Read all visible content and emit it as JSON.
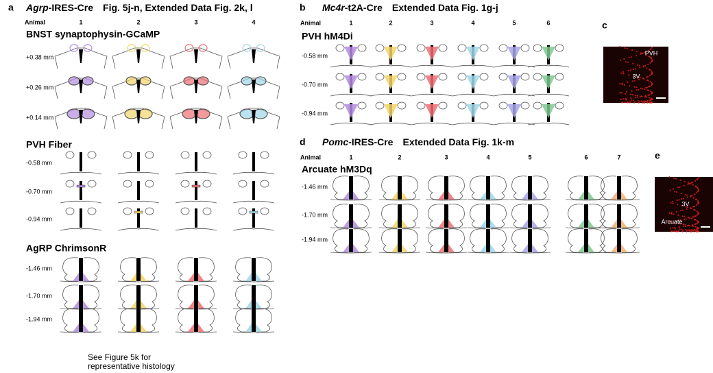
{
  "panels": [
    {
      "label": "a",
      "gene": "Agrp",
      "driver": "-IRES-Cre",
      "reference": "Fig. 5j-n, Extended Data Fig. 2k, l",
      "animal_header": "Animal",
      "animals": [
        "1",
        "2",
        "3",
        "4"
      ],
      "sections": [
        {
          "title": "BNST synaptophysin-GCaMP",
          "levels": [
            "+0.38 mm",
            "+0.26 mm",
            "+0.14 mm"
          ]
        },
        {
          "title": "PVH Fiber",
          "levels": [
            "-0.58 mm",
            "-0.70 mm",
            "-0.94 mm"
          ]
        },
        {
          "title": "AgRP ChrimsonR",
          "levels": [
            "-1.46 mm",
            "-1.70 mm",
            "-1.94 mm"
          ]
        }
      ],
      "note": [
        "See Figure 5k for",
        "representative histology"
      ]
    },
    {
      "label": "b",
      "gene": "Mc4r",
      "driver": "-t2A-Cre",
      "reference": "Extended Data Fig. 1g-j",
      "animal_header": "Animal",
      "animals": [
        "1",
        "2",
        "3",
        "4",
        "5",
        "6"
      ],
      "sections": [
        {
          "title": "PVH hM4Di",
          "levels": [
            "-0.58 mm",
            "-0.70 mm",
            "-0.94 mm"
          ]
        }
      ]
    },
    {
      "label": "c",
      "image_labels": [
        "PVH",
        "3V"
      ]
    },
    {
      "label": "d",
      "gene": "Pomc",
      "driver": "-IRES-Cre",
      "reference": "Extended Data Fig. 1k-m",
      "animal_header": "Animal",
      "animals": [
        "1",
        "2",
        "3",
        "4",
        "5",
        "6",
        "7"
      ],
      "sections": [
        {
          "title": "Arcuate hM3Dq",
          "levels": [
            "-1.46 mm",
            "-1.70 mm",
            "-1.94 mm"
          ]
        }
      ]
    },
    {
      "label": "e",
      "image_labels": [
        "3V",
        "Arcuate"
      ]
    }
  ]
}
